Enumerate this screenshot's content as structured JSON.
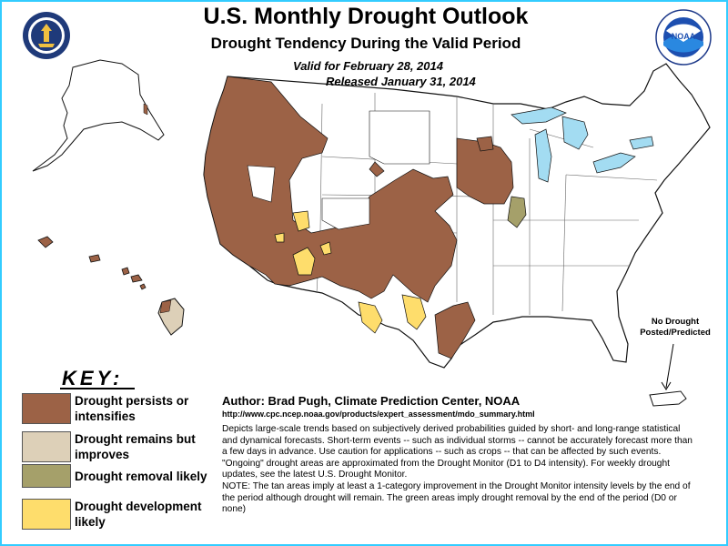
{
  "header": {
    "title": "U.S. Monthly Drought Outlook",
    "subtitle": "Drought Tendency During the Valid Period",
    "valid": "Valid for February 28, 2014",
    "released": "Released January 31, 2014"
  },
  "logos": {
    "left": "Department of Commerce seal",
    "right_text": "NOAA"
  },
  "colors": {
    "persists": "#9c6246",
    "remains_improves": "#ddd0b8",
    "removal": "#a5a06a",
    "development": "#fedd6c",
    "water": "#a3dcf2",
    "frame": "#33ccff"
  },
  "map": {
    "no_drought_label": "No Drought Posted/Predicted"
  },
  "key": {
    "title": "KEY:",
    "items": [
      {
        "label": "Drought persists or intensifies",
        "color": "#9c6246"
      },
      {
        "label": "Drought remains but improves",
        "color": "#ddd0b8"
      },
      {
        "label": "Drought removal likely",
        "color": "#a5a06a"
      },
      {
        "label": "Drought development likely",
        "color": "#fedd6c"
      }
    ]
  },
  "info": {
    "author": "Author: Brad Pugh, Climate Prediction Center, NOAA",
    "url": "http://www.cpc.ncep.noaa.gov/products/expert_assessment/mdo_summary.html",
    "description": "Depicts large-scale trends based on subjectively derived probabilities guided by short- and long-range statistical and dynamical forecasts. Short-term events -- such as individual storms -- cannot be accurately forecast more than a few days in advance. Use caution for applications -- such as crops -- that can be affected by such events. \"Ongoing\" drought areas are approximated from the Drought Monitor (D1 to D4 intensity). For weekly drought updates, see the latest U.S. Drought Monitor.",
    "note": "NOTE: The tan areas imply at least a 1-category improvement in the Drought Monitor intensity levels by the end of the period although drought will remain. The green areas imply drought removal by the end of the period (D0 or none)"
  }
}
